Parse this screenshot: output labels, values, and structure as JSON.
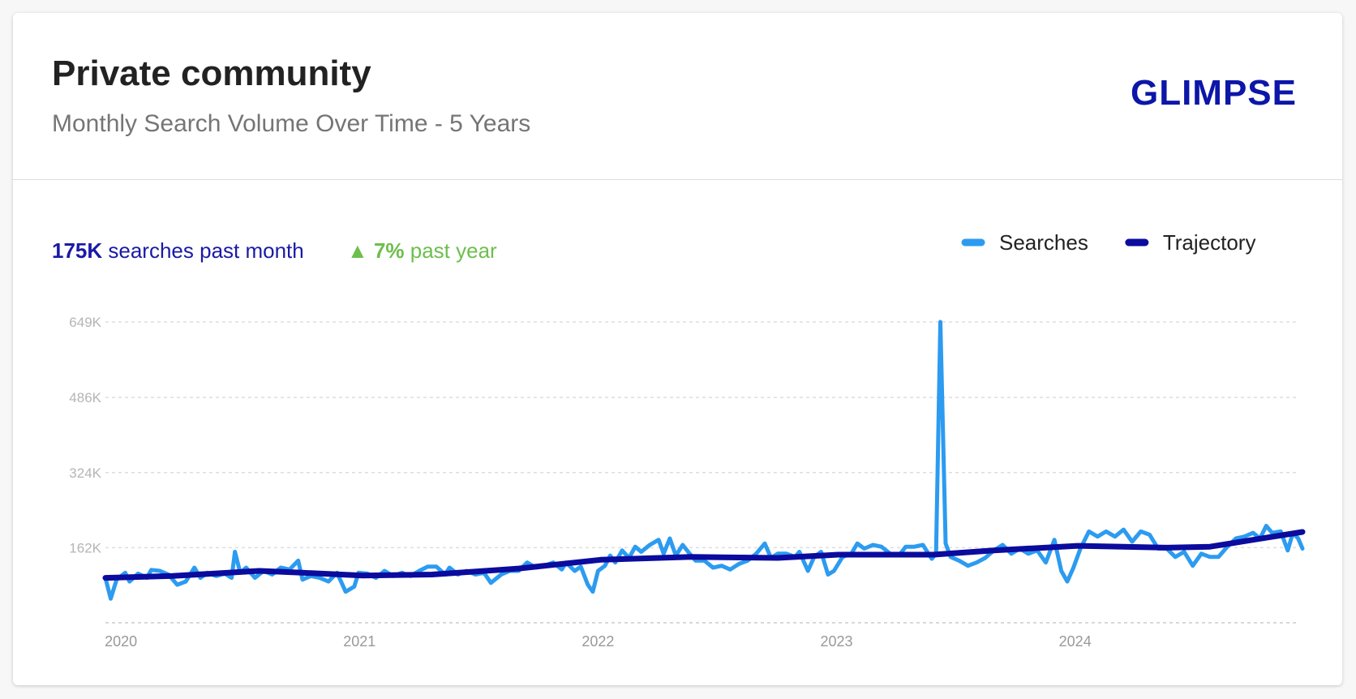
{
  "header": {
    "title": "Private community",
    "subtitle": "Monthly Search Volume Over Time - 5 Years",
    "logo": "GLIMPSE"
  },
  "stats": {
    "volume": "175K",
    "volume_text": "searches past month",
    "growth": "7%",
    "growth_text": "past year"
  },
  "chart_data": {
    "type": "line",
    "xlim": [
      2019.935,
      2024.953
    ],
    "xticks": [
      2020,
      2021,
      2022,
      2023,
      2024
    ],
    "ylim": [
      0,
      649000
    ],
    "yticks": [
      {
        "value": 162000,
        "label": "162K"
      },
      {
        "value": 324000,
        "label": "324K"
      },
      {
        "value": 486000,
        "label": "486K"
      },
      {
        "value": 649000,
        "label": "649K"
      }
    ],
    "grid": true,
    "legend": "top-right",
    "series": [
      {
        "name": "Searches",
        "color": "#2c9bf0",
        "width": 5,
        "x": [
          2019.935,
          2019.957,
          2019.982,
          2020.018,
          2020.036,
          2020.072,
          2020.109,
          2020.127,
          2020.163,
          2020.199,
          2020.236,
          2020.272,
          2020.308,
          2020.333,
          2020.362,
          2020.399,
          2020.435,
          2020.464,
          2020.478,
          2020.5,
          2020.525,
          2020.562,
          2020.598,
          2020.634,
          2020.67,
          2020.707,
          2020.743,
          2020.761,
          2020.797,
          2020.833,
          2020.87,
          2020.906,
          2020.942,
          2020.978,
          2020.996,
          2021.033,
          2021.069,
          2021.105,
          2021.141,
          2021.178,
          2021.214,
          2021.25,
          2021.286,
          2021.322,
          2021.359,
          2021.377,
          2021.413,
          2021.449,
          2021.486,
          2021.522,
          2021.551,
          2021.594,
          2021.63,
          2021.667,
          2021.703,
          2021.739,
          2021.775,
          2021.812,
          2021.848,
          2021.866,
          2021.902,
          2021.928,
          2021.957,
          2021.978,
          2022.0,
          2022.029,
          2022.051,
          2022.072,
          2022.101,
          2022.13,
          2022.156,
          2022.181,
          2022.217,
          2022.254,
          2022.275,
          2022.301,
          2022.326,
          2022.355,
          2022.384,
          2022.409,
          2022.446,
          2022.482,
          2022.518,
          2022.554,
          2022.591,
          2022.627,
          2022.663,
          2022.699,
          2022.725,
          2022.754,
          2022.79,
          2022.826,
          2022.844,
          2022.88,
          2022.906,
          2022.935,
          2022.964,
          2022.989,
          2023.025,
          2023.062,
          2023.087,
          2023.116,
          2023.152,
          2023.188,
          2023.225,
          2023.261,
          2023.29,
          2023.326,
          2023.362,
          2023.399,
          2023.417,
          2023.435,
          2023.457,
          2023.478,
          2023.514,
          2023.551,
          2023.587,
          2023.623,
          2023.659,
          2023.696,
          2023.732,
          2023.768,
          2023.804,
          2023.841,
          2023.877,
          2023.913,
          2023.942,
          2023.967,
          2023.993,
          2024.022,
          2024.058,
          2024.094,
          2024.13,
          2024.167,
          2024.203,
          2024.239,
          2024.275,
          2024.312,
          2024.348,
          2024.384,
          2024.42,
          2024.457,
          2024.493,
          2024.529,
          2024.565,
          2024.601,
          2024.638,
          2024.674,
          2024.71,
          2024.746,
          2024.775,
          2024.801,
          2024.826,
          2024.862,
          2024.891,
          2024.913,
          2024.935,
          2024.953
        ],
        "values": [
          97000,
          52000,
          93000,
          108000,
          89000,
          106000,
          97000,
          114000,
          112000,
          104000,
          82000,
          89000,
          119000,
          97000,
          108000,
          101000,
          106000,
          97000,
          153000,
          108000,
          119000,
          97000,
          112000,
          104000,
          119000,
          115000,
          134000,
          93000,
          101000,
          97000,
          89000,
          108000,
          67000,
          78000,
          108000,
          106000,
          97000,
          112000,
          101000,
          108000,
          101000,
          112000,
          121000,
          121000,
          104000,
          119000,
          104000,
          112000,
          104000,
          108000,
          86000,
          104000,
          112000,
          112000,
          130000,
          119000,
          123000,
          130000,
          115000,
          130000,
          112000,
          121000,
          82000,
          67000,
          112000,
          123000,
          145000,
          130000,
          156000,
          140000,
          164000,
          153000,
          168000,
          179000,
          149000,
          182000,
          145000,
          168000,
          149000,
          134000,
          134000,
          119000,
          123000,
          115000,
          127000,
          134000,
          149000,
          171000,
          140000,
          149000,
          149000,
          142000,
          153000,
          112000,
          142000,
          153000,
          104000,
          112000,
          142000,
          149000,
          171000,
          160000,
          168000,
          164000,
          149000,
          145000,
          164000,
          164000,
          168000,
          138000,
          149000,
          649000,
          171000,
          142000,
          134000,
          123000,
          130000,
          140000,
          156000,
          168000,
          149000,
          160000,
          149000,
          156000,
          130000,
          179000,
          112000,
          89000,
          119000,
          160000,
          197000,
          186000,
          197000,
          186000,
          201000,
          175000,
          197000,
          190000,
          160000,
          160000,
          142000,
          153000,
          123000,
          149000,
          142000,
          142000,
          164000,
          182000,
          186000,
          194000,
          182000,
          209000,
          194000,
          197000,
          156000,
          194000,
          182000,
          160000
        ]
      },
      {
        "name": "Trajectory",
        "color": "#0b0b9e",
        "width": 7,
        "x": [
          2019.935,
          2020.217,
          2020.58,
          2020.76,
          2021.014,
          2021.304,
          2021.667,
          2022.011,
          2022.391,
          2022.754,
          2023.007,
          2023.406,
          2023.659,
          2024.011,
          2024.384,
          2024.565,
          2024.746,
          2024.953
        ],
        "values": [
          97000,
          101000,
          112000,
          108000,
          102000,
          104000,
          117000,
          136000,
          142000,
          140000,
          147000,
          147000,
          156000,
          166000,
          162000,
          164000,
          179000,
          196000
        ]
      }
    ]
  }
}
